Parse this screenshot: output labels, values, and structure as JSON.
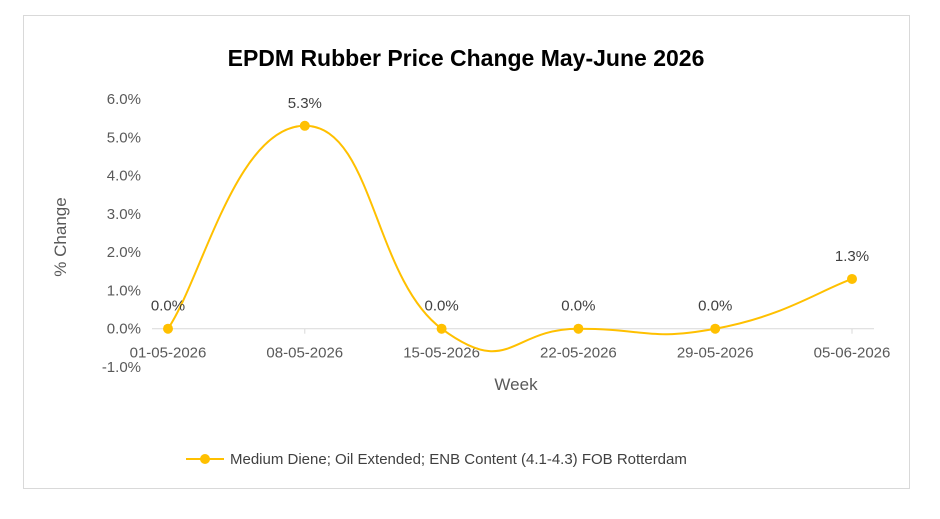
{
  "chart_data": {
    "type": "line",
    "title": "EPDM Rubber Price Change May-June 2026",
    "xlabel": "Week",
    "ylabel": "% Change",
    "categories": [
      "01-05-2026",
      "08-05-2026",
      "15-05-2026",
      "22-05-2026",
      "29-05-2026",
      "05-06-2026"
    ],
    "series": [
      {
        "name": "Medium Diene; Oil Extended; ENB Content (4.1-4.3) FOB Rotterdam",
        "values": [
          0.0,
          5.3,
          0.0,
          0.0,
          0.0,
          1.3
        ],
        "labels": [
          "0.0%",
          "5.3%",
          "0.0%",
          "0.0%",
          "0.0%",
          "1.3%"
        ],
        "color": "#FFC000"
      }
    ],
    "ylim": [
      -1.0,
      6.0
    ],
    "yticks": [
      -1.0,
      0.0,
      1.0,
      2.0,
      3.0,
      4.0,
      5.0,
      6.0
    ],
    "ytick_labels": [
      "-1.0%",
      "0.0%",
      "1.0%",
      "2.0%",
      "3.0%",
      "4.0%",
      "5.0%",
      "6.0%"
    ],
    "grid": false,
    "smooth": true,
    "legend": "bottom"
  }
}
